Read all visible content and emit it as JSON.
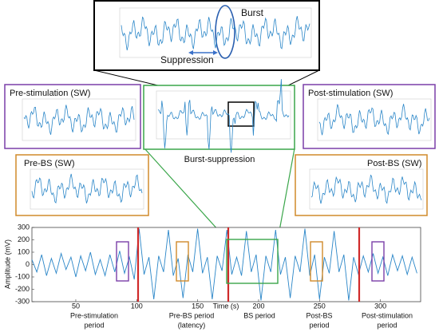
{
  "chart_data": {
    "type": "line",
    "x_label": "Time (s)",
    "y_label": "Amplitude (mV)",
    "x": [
      14,
      18,
      22,
      26,
      30,
      34,
      38,
      42,
      46,
      50,
      54,
      58,
      62,
      66,
      70,
      74,
      78,
      82,
      86,
      90,
      94,
      98,
      102,
      106,
      110,
      114,
      118,
      122,
      126,
      130,
      134,
      138,
      142,
      146,
      150,
      154,
      158,
      162,
      166,
      170,
      174,
      178,
      182,
      186,
      190,
      194,
      198,
      202,
      206,
      210,
      214,
      218,
      222,
      226,
      230,
      234,
      238,
      242,
      246,
      250,
      254,
      258,
      262,
      266,
      270,
      274,
      278,
      282,
      286,
      290,
      294,
      298,
      302,
      306,
      310,
      314,
      318,
      322,
      326,
      330
    ],
    "series": [
      {
        "color": "#2a86c8",
        "values": [
          40,
          -60,
          80,
          -90,
          50,
          -70,
          90,
          -40,
          60,
          -100,
          70,
          -50,
          100,
          -80,
          40,
          -90,
          80,
          -60,
          110,
          -70,
          60,
          -120,
          290,
          -80,
          60,
          -280,
          70,
          -60,
          280,
          -90,
          50,
          -270,
          80,
          -60,
          290,
          -70,
          60,
          -280,
          70,
          -50,
          280,
          -80,
          60,
          -90,
          270,
          -60,
          80,
          -290,
          70,
          -60,
          280,
          -80,
          60,
          -270,
          70,
          -60,
          290,
          -90,
          80,
          -280,
          60,
          -70,
          270,
          -60,
          80,
          -290,
          60,
          -80,
          70,
          -60,
          90,
          -70,
          60,
          -90,
          80,
          -50,
          70,
          -80,
          60,
          -70
        ]
      }
    ],
    "xlim": [
      14,
      333
    ],
    "ylim": [
      -300,
      300
    ],
    "xticks": [
      50,
      100,
      150,
      200,
      250,
      300
    ],
    "yticks": [
      -300,
      -200,
      -100,
      0,
      100,
      200,
      300
    ],
    "period_labels": [
      [
        "Pre-stimulation",
        "period"
      ],
      [
        "Pre-BS period",
        "(latency)"
      ],
      [
        "BS period"
      ],
      [
        "Post-BS",
        "period"
      ],
      [
        "Post-stimulation",
        "period"
      ]
    ]
  },
  "insets": {
    "burst": "Burst",
    "suppression": "Suppression",
    "burst_suppression": "Burst-suppression",
    "pre_stimulation": "Pre-stimulation (SW)",
    "post_stimulation": "Post-stimulation (SW)",
    "pre_bs": "Pre-BS (SW)",
    "post_bs": "Post-BS (SW)"
  }
}
